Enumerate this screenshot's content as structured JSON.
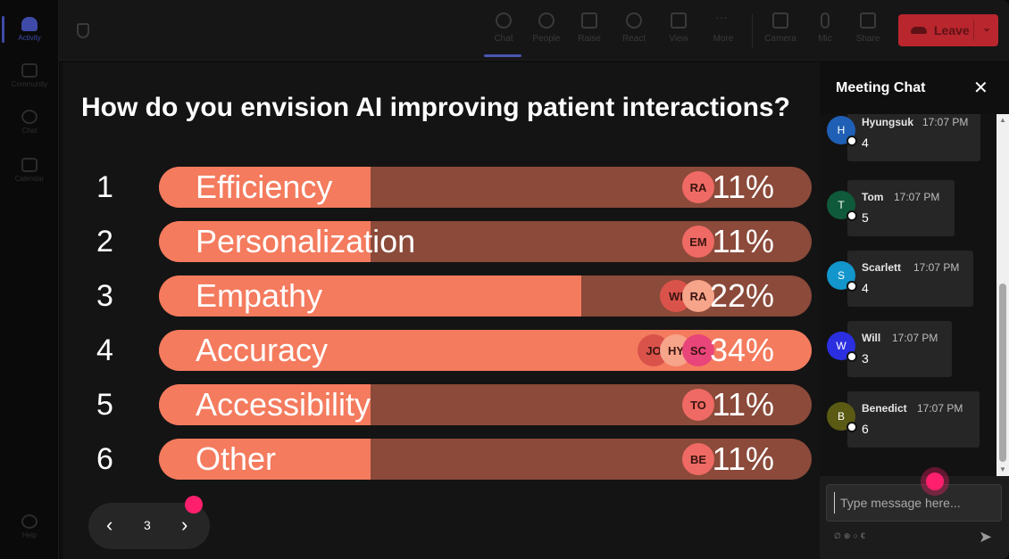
{
  "rail": {
    "items": [
      {
        "label": "Activity",
        "active": true
      },
      {
        "label": "Community"
      },
      {
        "label": "Chat"
      },
      {
        "label": "Calendar"
      }
    ],
    "help": "Help"
  },
  "toolbar": {
    "buttons": [
      {
        "label": "Chat",
        "icon": "chat-icon",
        "active": true
      },
      {
        "label": "People",
        "icon": "people-icon"
      },
      {
        "label": "Raise",
        "icon": "raise-hand-icon"
      },
      {
        "label": "React",
        "icon": "react-icon"
      },
      {
        "label": "View",
        "icon": "view-icon"
      },
      {
        "label": "More",
        "icon": "more-icon"
      },
      {
        "label": "Camera",
        "icon": "camera-icon"
      },
      {
        "label": "Mic",
        "icon": "mic-icon"
      },
      {
        "label": "Share",
        "icon": "share-icon"
      }
    ],
    "leave_label": "Leave"
  },
  "poll": {
    "question": "How do you envision AI improving patient interactions?",
    "options": [
      {
        "num": "1",
        "label": "Efficiency",
        "pct": "11%",
        "fraction": 0.11,
        "voters": [
          "RA"
        ]
      },
      {
        "num": "2",
        "label": "Personalization",
        "pct": "11%",
        "fraction": 0.11,
        "voters": [
          "EM"
        ]
      },
      {
        "num": "3",
        "label": "Empathy",
        "pct": "22%",
        "fraction": 0.22,
        "voters": [
          "WI",
          "RA"
        ]
      },
      {
        "num": "4",
        "label": "Accuracy",
        "pct": "34%",
        "fraction": 0.34,
        "voters": [
          "JO",
          "HY",
          "SC"
        ]
      },
      {
        "num": "5",
        "label": "Accessibility",
        "pct": "11%",
        "fraction": 0.11,
        "voters": [
          "TO"
        ]
      },
      {
        "num": "6",
        "label": "Other",
        "pct": "11%",
        "fraction": 0.11,
        "voters": [
          "BE"
        ]
      }
    ],
    "page": "3"
  },
  "chat": {
    "title": "Meeting Chat",
    "messages": [
      {
        "initial": "H",
        "name": "Hyungsuk",
        "time": "17:07 PM",
        "text": "4",
        "color": "#1f5fb5"
      },
      {
        "initial": "T",
        "name": "Tom",
        "time": "17:07 PM",
        "text": "5",
        "color": "#0f5a3a"
      },
      {
        "initial": "S",
        "name": "Scarlett",
        "time": "17:07 PM",
        "text": "4",
        "color": "#1296cc"
      },
      {
        "initial": "W",
        "name": "Will",
        "time": "17:07 PM",
        "text": "3",
        "color": "#2b2fe0"
      },
      {
        "initial": "B",
        "name": "Benedict",
        "time": "17:07 PM",
        "text": "6",
        "color": "#5a5a14"
      }
    ],
    "input_placeholder": "Type message here..."
  },
  "colors": {
    "bar_fill": "#f47b5e",
    "bar_track": "#8b4a3a",
    "leave": "#b9262e",
    "accent": "#3f4aa8"
  }
}
